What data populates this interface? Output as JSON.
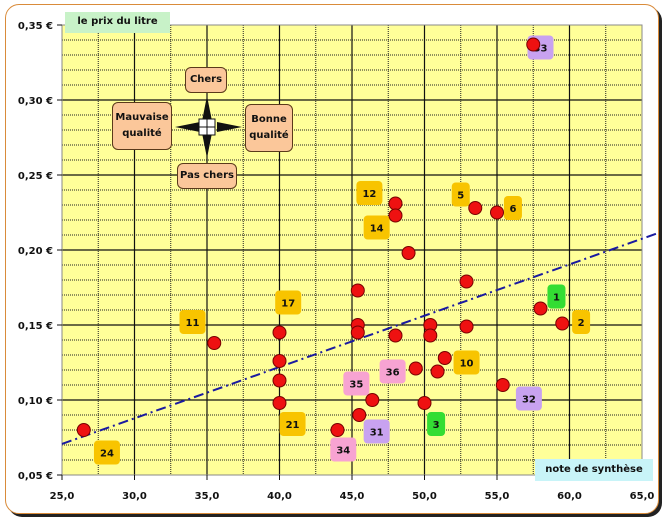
{
  "chart_data": {
    "type": "scatter",
    "ylabel": "le prix du litre",
    "xlabel": "note de synthèse",
    "xlim": [
      25,
      65
    ],
    "ylim": [
      0.05,
      0.35
    ],
    "x_ticks": [
      "25,0",
      "30,0",
      "35,0",
      "40,0",
      "45,0",
      "50,0",
      "55,0",
      "60,0",
      "65,0"
    ],
    "y_ticks": [
      "0,05 €",
      "0,10 €",
      "0,15 €",
      "0,20 €",
      "0,25 €",
      "0,30 €",
      "0,35 €"
    ],
    "grid": true,
    "colors": {
      "plot_bg": "#ffff99",
      "point": "#ee1111",
      "trend": "#1a1aa0",
      "orange": "#f8c400",
      "purple": "#c8a2f0",
      "pink": "#f7a3d2",
      "green": "#33dd33"
    },
    "points": [
      [
        26.5,
        0.08
      ],
      [
        35.5,
        0.138
      ],
      [
        40,
        0.145
      ],
      [
        40,
        0.126
      ],
      [
        40,
        0.113
      ],
      [
        40,
        0.098
      ],
      [
        44,
        0.08
      ],
      [
        45.4,
        0.173
      ],
      [
        45.4,
        0.15
      ],
      [
        45.4,
        0.145
      ],
      [
        45.5,
        0.09
      ],
      [
        46.4,
        0.1
      ],
      [
        48,
        0.143
      ],
      [
        48,
        0.231
      ],
      [
        48,
        0.223
      ],
      [
        48.9,
        0.198
      ],
      [
        49.4,
        0.121
      ],
      [
        50,
        0.098
      ],
      [
        50.4,
        0.15
      ],
      [
        50.4,
        0.143
      ],
      [
        50.9,
        0.119
      ],
      [
        51.4,
        0.128
      ],
      [
        52.9,
        0.179
      ],
      [
        52.9,
        0.149
      ],
      [
        53.5,
        0.228
      ],
      [
        55,
        0.225
      ],
      [
        55.4,
        0.11
      ],
      [
        57.5,
        0.337
      ],
      [
        58,
        0.161
      ],
      [
        59.5,
        0.151
      ]
    ],
    "trendline": {
      "slope": 0.00342,
      "intercept": -0.0148,
      "x_range": [
        25,
        66
      ]
    },
    "point_labels": [
      {
        "text": "24",
        "x": 28.1,
        "y": 0.065,
        "color": "orange"
      },
      {
        "text": "11",
        "x": 34.0,
        "y": 0.152,
        "color": "orange"
      },
      {
        "text": "17",
        "x": 40.6,
        "y": 0.165,
        "color": "orange"
      },
      {
        "text": "21",
        "x": 40.9,
        "y": 0.084,
        "color": "orange"
      },
      {
        "text": "12",
        "x": 46.2,
        "y": 0.238,
        "color": "orange"
      },
      {
        "text": "14",
        "x": 46.7,
        "y": 0.215,
        "color": "orange"
      },
      {
        "text": "5",
        "x": 52.5,
        "y": 0.237,
        "color": "orange"
      },
      {
        "text": "6",
        "x": 56.1,
        "y": 0.228,
        "color": "orange"
      },
      {
        "text": "33",
        "x": 58.0,
        "y": 0.335,
        "color": "purple"
      },
      {
        "text": "1",
        "x": 59.1,
        "y": 0.169,
        "color": "green"
      },
      {
        "text": "2",
        "x": 60.8,
        "y": 0.152,
        "color": "orange"
      },
      {
        "text": "10",
        "x": 52.9,
        "y": 0.125,
        "color": "orange"
      },
      {
        "text": "36",
        "x": 47.8,
        "y": 0.119,
        "color": "pink"
      },
      {
        "text": "35",
        "x": 45.3,
        "y": 0.111,
        "color": "pink"
      },
      {
        "text": "32",
        "x": 57.2,
        "y": 0.101,
        "color": "purple"
      },
      {
        "text": "3",
        "x": 50.8,
        "y": 0.084,
        "color": "green"
      },
      {
        "text": "31",
        "x": 46.7,
        "y": 0.079,
        "color": "purple"
      },
      {
        "text": "34",
        "x": 44.4,
        "y": 0.067,
        "color": "pink"
      }
    ]
  },
  "compass": {
    "up": "Chers",
    "down": "Pas chers",
    "left": "Mauvaise qualité",
    "right": "Bonne qualité"
  }
}
